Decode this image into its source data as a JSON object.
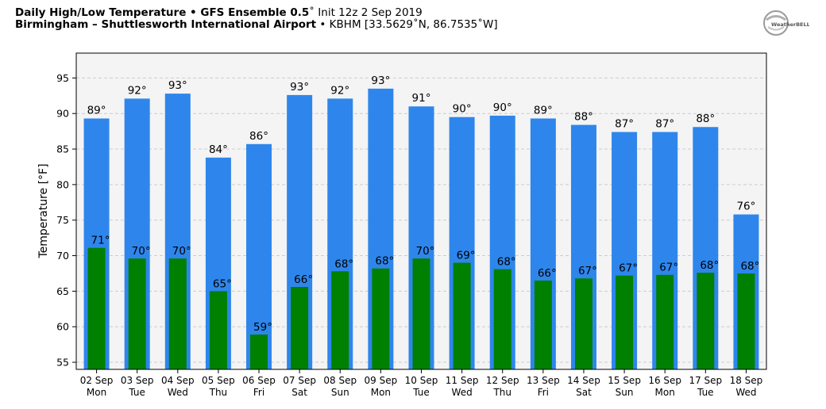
{
  "header": {
    "title_bold": "Daily High/Low Temperature • GFS Ensemble 0.5",
    "title_rest": "˚ Init 12z 2 Sep 2019",
    "location_bold": "Birmingham – Shuttlesworth International Airport",
    "location_rest": " • KBHM [33.5629˚N, 86.7535˚W]"
  },
  "logo": {
    "text": "WeatherBELL",
    "icon": "weatherbell-logo-icon"
  },
  "colors": {
    "high": "#2e86ec",
    "low": "#008000",
    "plot_bg": "#f4f4f4",
    "grid": "#cccccc"
  },
  "chart_data": {
    "type": "bar",
    "ylabel": "Temperature [°F]",
    "ylim": [
      54,
      98.5
    ],
    "yticks": [
      55,
      60,
      65,
      70,
      75,
      80,
      85,
      90,
      95
    ],
    "grid": true,
    "categories": [
      [
        "02 Sep",
        "Mon"
      ],
      [
        "03 Sep",
        "Tue"
      ],
      [
        "04 Sep",
        "Wed"
      ],
      [
        "05 Sep",
        "Thu"
      ],
      [
        "06 Sep",
        "Fri"
      ],
      [
        "07 Sep",
        "Sat"
      ],
      [
        "08 Sep",
        "Sun"
      ],
      [
        "09 Sep",
        "Mon"
      ],
      [
        "10 Sep",
        "Tue"
      ],
      [
        "11 Sep",
        "Wed"
      ],
      [
        "12 Sep",
        "Thu"
      ],
      [
        "13 Sep",
        "Fri"
      ],
      [
        "14 Sep",
        "Sat"
      ],
      [
        "15 Sep",
        "Sun"
      ],
      [
        "16 Sep",
        "Mon"
      ],
      [
        "17 Sep",
        "Tue"
      ],
      [
        "18 Sep",
        "Wed"
      ]
    ],
    "series": [
      {
        "key": "high",
        "values": [
          89.3,
          92.1,
          92.8,
          83.8,
          85.7,
          92.6,
          92.1,
          93.5,
          91.0,
          89.5,
          89.7,
          89.3,
          88.4,
          87.4,
          87.4,
          88.1,
          75.8
        ],
        "labels": [
          "89°",
          "92°",
          "93°",
          "84°",
          "86°",
          "93°",
          "92°",
          "93°",
          "91°",
          "90°",
          "90°",
          "89°",
          "88°",
          "87°",
          "87°",
          "88°",
          "76°"
        ]
      },
      {
        "key": "low",
        "values": [
          71.1,
          69.6,
          69.6,
          65.0,
          58.9,
          65.6,
          67.8,
          68.2,
          69.6,
          69.0,
          68.1,
          66.5,
          66.8,
          67.2,
          67.3,
          67.6,
          67.5
        ],
        "labels": [
          "71°",
          "70°",
          "70°",
          "65°",
          "59°",
          "66°",
          "68°",
          "68°",
          "70°",
          "69°",
          "68°",
          "66°",
          "67°",
          "67°",
          "67°",
          "68°",
          "68°"
        ]
      }
    ]
  }
}
